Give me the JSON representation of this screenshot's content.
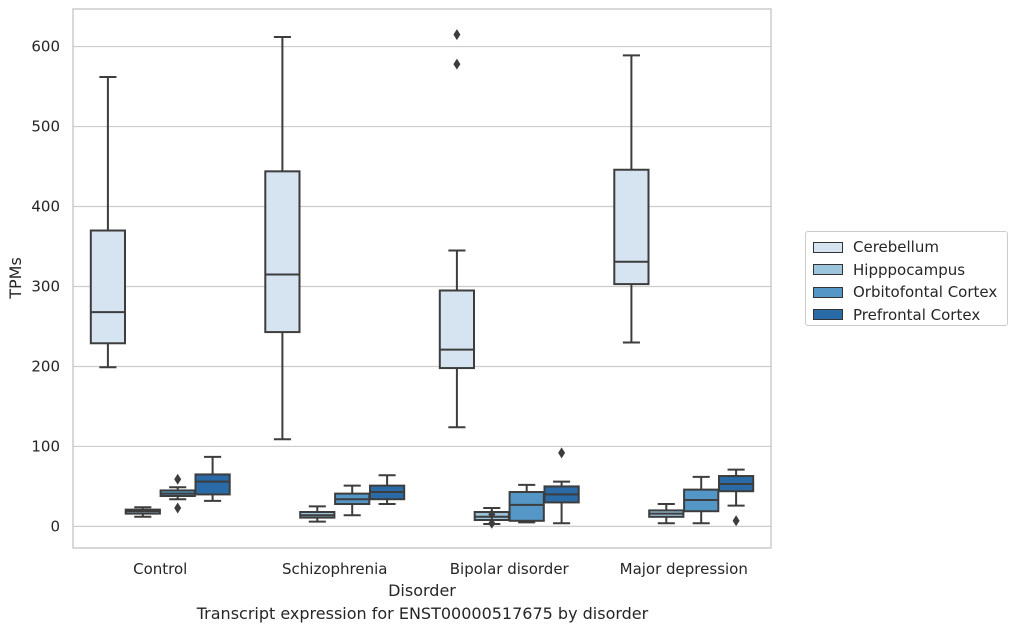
{
  "chart_data": {
    "type": "box",
    "caption": "Transcript expression for ENST00000517675 by disorder",
    "xlabel": "Disorder",
    "ylabel": "TPMs",
    "ylim": [
      -27,
      647
    ],
    "yticks": [
      0,
      100,
      200,
      300,
      400,
      500,
      600
    ],
    "grid": "horizontal",
    "legend_position": "right",
    "categories": [
      "Control",
      "Schizophrenia",
      "Bipolar disorder",
      "Major depression"
    ],
    "series": [
      {
        "name": "Cerebellum",
        "color": "#d6e4f2",
        "boxes": [
          {
            "low": 199,
            "q1": 229,
            "median": 268,
            "q3": 370,
            "high": 562,
            "outliers": []
          },
          {
            "low": 109,
            "q1": 243,
            "median": 315,
            "q3": 444,
            "high": 612,
            "outliers": []
          },
          {
            "low": 124,
            "q1": 198,
            "median": 221,
            "q3": 295,
            "high": 345,
            "outliers": [
              578,
              615
            ]
          },
          {
            "low": 230,
            "q1": 303,
            "median": 331,
            "q3": 446,
            "high": 589,
            "outliers": []
          }
        ]
      },
      {
        "name": "Hipppocampus",
        "color": "#9dc4dd",
        "boxes": [
          {
            "low": 12,
            "q1": 16,
            "median": 19,
            "q3": 21,
            "high": 24,
            "outliers": []
          },
          {
            "low": 6,
            "q1": 11,
            "median": 14,
            "q3": 18,
            "high": 25,
            "outliers": []
          },
          {
            "low": 3,
            "q1": 8,
            "median": 12,
            "q3": 18,
            "high": 23,
            "outliers": [
              4,
              15
            ]
          },
          {
            "low": 4,
            "q1": 12,
            "median": 16,
            "q3": 20,
            "high": 28,
            "outliers": []
          }
        ]
      },
      {
        "name": "Orbitofontal Cortex",
        "color": "#5497c6",
        "boxes": [
          {
            "low": 34,
            "q1": 38,
            "median": 41,
            "q3": 45,
            "high": 49,
            "outliers": [
              23,
              59
            ]
          },
          {
            "low": 14,
            "q1": 28,
            "median": 34,
            "q3": 41,
            "high": 51,
            "outliers": []
          },
          {
            "low": 5,
            "q1": 7,
            "median": 27,
            "q3": 43,
            "high": 52,
            "outliers": []
          },
          {
            "low": 4,
            "q1": 19,
            "median": 33,
            "q3": 46,
            "high": 62,
            "outliers": []
          }
        ]
      },
      {
        "name": "Prefrontal Cortex",
        "color": "#2a6aa7",
        "boxes": [
          {
            "low": 32,
            "q1": 40,
            "median": 56,
            "q3": 65,
            "high": 87,
            "outliers": []
          },
          {
            "low": 28,
            "q1": 34,
            "median": 43,
            "q3": 51,
            "high": 64,
            "outliers": []
          },
          {
            "low": 4,
            "q1": 30,
            "median": 40,
            "q3": 50,
            "high": 56,
            "outliers": [
              92
            ]
          },
          {
            "low": 26,
            "q1": 44,
            "median": 53,
            "q3": 63,
            "high": 71,
            "outliers": [
              7
            ]
          }
        ]
      }
    ]
  }
}
